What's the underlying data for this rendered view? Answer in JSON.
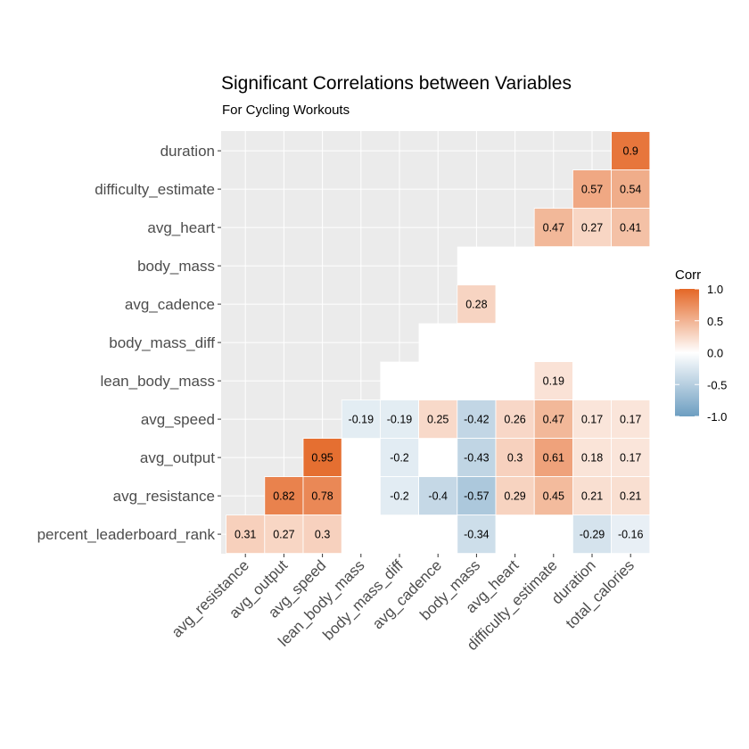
{
  "chart_data": {
    "type": "heatmap",
    "title": "Significant Correlations between Variables",
    "subtitle": "For Cycling Workouts",
    "x_categories": [
      "avg_resistance",
      "avg_output",
      "avg_speed",
      "lean_body_mass",
      "body_mass_diff",
      "avg_cadence",
      "body_mass",
      "avg_heart",
      "difficulty_estimate",
      "duration",
      "total_calories"
    ],
    "y_categories": [
      "duration",
      "difficulty_estimate",
      "avg_heart",
      "body_mass",
      "avg_cadence",
      "body_mass_diff",
      "lean_body_mass",
      "avg_speed",
      "avg_output",
      "avg_resistance",
      "percent_leaderboard_rank"
    ],
    "cells": [
      {
        "x": "total_calories",
        "y": "duration",
        "value": 0.9,
        "label": "0.9"
      },
      {
        "x": "duration",
        "y": "difficulty_estimate",
        "value": 0.57,
        "label": "0.57"
      },
      {
        "x": "total_calories",
        "y": "difficulty_estimate",
        "value": 0.54,
        "label": "0.54"
      },
      {
        "x": "difficulty_estimate",
        "y": "avg_heart",
        "value": 0.47,
        "label": "0.47"
      },
      {
        "x": "duration",
        "y": "avg_heart",
        "value": 0.27,
        "label": "0.27"
      },
      {
        "x": "total_calories",
        "y": "avg_heart",
        "value": 0.41,
        "label": "0.41"
      },
      {
        "x": "body_mass",
        "y": "avg_cadence",
        "value": 0.28,
        "label": "0.28"
      },
      {
        "x": "difficulty_estimate",
        "y": "lean_body_mass",
        "value": 0.19,
        "label": "0.19"
      },
      {
        "x": "lean_body_mass",
        "y": "avg_speed",
        "value": -0.19,
        "label": "-0.19"
      },
      {
        "x": "body_mass_diff",
        "y": "avg_speed",
        "value": -0.19,
        "label": "-0.19"
      },
      {
        "x": "avg_cadence",
        "y": "avg_speed",
        "value": 0.25,
        "label": "0.25"
      },
      {
        "x": "body_mass",
        "y": "avg_speed",
        "value": -0.42,
        "label": "-0.42"
      },
      {
        "x": "avg_heart",
        "y": "avg_speed",
        "value": 0.26,
        "label": "0.26"
      },
      {
        "x": "difficulty_estimate",
        "y": "avg_speed",
        "value": 0.47,
        "label": "0.47"
      },
      {
        "x": "duration",
        "y": "avg_speed",
        "value": 0.17,
        "label": "0.17"
      },
      {
        "x": "total_calories",
        "y": "avg_speed",
        "value": 0.17,
        "label": "0.17"
      },
      {
        "x": "avg_speed",
        "y": "avg_output",
        "value": 0.95,
        "label": "0.95"
      },
      {
        "x": "body_mass_diff",
        "y": "avg_output",
        "value": -0.2,
        "label": "-0.2"
      },
      {
        "x": "body_mass",
        "y": "avg_output",
        "value": -0.43,
        "label": "-0.43"
      },
      {
        "x": "avg_heart",
        "y": "avg_output",
        "value": 0.3,
        "label": "0.3"
      },
      {
        "x": "difficulty_estimate",
        "y": "avg_output",
        "value": 0.61,
        "label": "0.61"
      },
      {
        "x": "duration",
        "y": "avg_output",
        "value": 0.18,
        "label": "0.18"
      },
      {
        "x": "total_calories",
        "y": "avg_output",
        "value": 0.17,
        "label": "0.17"
      },
      {
        "x": "avg_output",
        "y": "avg_resistance",
        "value": 0.82,
        "label": "0.82"
      },
      {
        "x": "avg_speed",
        "y": "avg_resistance",
        "value": 0.78,
        "label": "0.78"
      },
      {
        "x": "body_mass_diff",
        "y": "avg_resistance",
        "value": -0.2,
        "label": "-0.2"
      },
      {
        "x": "avg_cadence",
        "y": "avg_resistance",
        "value": -0.4,
        "label": "-0.4"
      },
      {
        "x": "body_mass",
        "y": "avg_resistance",
        "value": -0.57,
        "label": "-0.57"
      },
      {
        "x": "avg_heart",
        "y": "avg_resistance",
        "value": 0.29,
        "label": "0.29"
      },
      {
        "x": "difficulty_estimate",
        "y": "avg_resistance",
        "value": 0.45,
        "label": "0.45"
      },
      {
        "x": "duration",
        "y": "avg_resistance",
        "value": 0.21,
        "label": "0.21"
      },
      {
        "x": "total_calories",
        "y": "avg_resistance",
        "value": 0.21,
        "label": "0.21"
      },
      {
        "x": "avg_resistance",
        "y": "percent_leaderboard_rank",
        "value": 0.31,
        "label": "0.31"
      },
      {
        "x": "avg_output",
        "y": "percent_leaderboard_rank",
        "value": 0.27,
        "label": "0.27"
      },
      {
        "x": "avg_speed",
        "y": "percent_leaderboard_rank",
        "value": 0.3,
        "label": "0.3"
      },
      {
        "x": "body_mass",
        "y": "percent_leaderboard_rank",
        "value": -0.34,
        "label": "-0.34"
      },
      {
        "x": "duration",
        "y": "percent_leaderboard_rank",
        "value": -0.29,
        "label": "-0.29"
      },
      {
        "x": "total_calories",
        "y": "percent_leaderboard_rank",
        "value": -0.16,
        "label": "-0.16"
      }
    ],
    "white_mask_cells": [
      {
        "x": "body_mass",
        "y": "body_mass"
      },
      {
        "x": "avg_heart",
        "y": "body_mass"
      },
      {
        "x": "difficulty_estimate",
        "y": "body_mass"
      },
      {
        "x": "duration",
        "y": "body_mass"
      },
      {
        "x": "total_calories",
        "y": "body_mass"
      },
      {
        "x": "avg_heart",
        "y": "avg_cadence"
      },
      {
        "x": "difficulty_estimate",
        "y": "avg_cadence"
      },
      {
        "x": "duration",
        "y": "avg_cadence"
      },
      {
        "x": "total_calories",
        "y": "avg_cadence"
      },
      {
        "x": "avg_cadence",
        "y": "body_mass_diff"
      },
      {
        "x": "body_mass",
        "y": "body_mass_diff"
      },
      {
        "x": "avg_heart",
        "y": "body_mass_diff"
      },
      {
        "x": "difficulty_estimate",
        "y": "body_mass_diff"
      },
      {
        "x": "duration",
        "y": "body_mass_diff"
      },
      {
        "x": "total_calories",
        "y": "body_mass_diff"
      },
      {
        "x": "body_mass_diff",
        "y": "lean_body_mass"
      },
      {
        "x": "avg_cadence",
        "y": "lean_body_mass"
      },
      {
        "x": "body_mass",
        "y": "lean_body_mass"
      },
      {
        "x": "avg_heart",
        "y": "lean_body_mass"
      },
      {
        "x": "duration",
        "y": "lean_body_mass"
      },
      {
        "x": "total_calories",
        "y": "lean_body_mass"
      },
      {
        "x": "lean_body_mass",
        "y": "avg_output"
      },
      {
        "x": "avg_cadence",
        "y": "avg_output"
      },
      {
        "x": "lean_body_mass",
        "y": "avg_resistance"
      },
      {
        "x": "lean_body_mass",
        "y": "percent_leaderboard_rank"
      },
      {
        "x": "body_mass_diff",
        "y": "percent_leaderboard_rank"
      },
      {
        "x": "avg_cadence",
        "y": "percent_leaderboard_rank"
      },
      {
        "x": "avg_heart",
        "y": "percent_leaderboard_rank"
      },
      {
        "x": "difficulty_estimate",
        "y": "percent_leaderboard_rank"
      }
    ],
    "color_scale": {
      "low": "#6d9ec1",
      "mid": "#ffffff",
      "high": "#e46726",
      "limits": [
        -1,
        1
      ]
    },
    "panel_background": "#ebebeb",
    "legend": {
      "title": "Corr",
      "position": "right",
      "breaks": [
        1.0,
        0.5,
        0.0,
        -0.5,
        -1.0
      ],
      "labels": [
        "1.0",
        "0.5",
        "0.0",
        "-0.5",
        "-1.0"
      ]
    },
    "grid": true
  }
}
